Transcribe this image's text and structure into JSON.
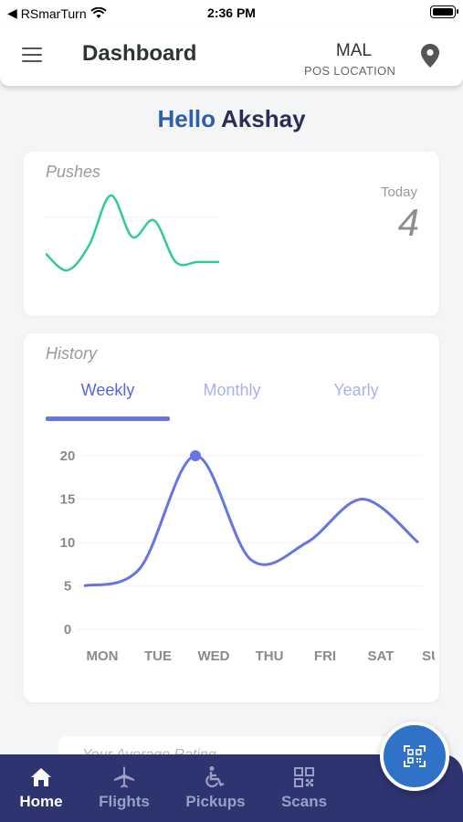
{
  "status_bar": {
    "back_app": "RSmarTurn",
    "time": "2:36 PM"
  },
  "header": {
    "title": "Dashboard",
    "location_code": "MAL",
    "location_label": "POS LOCATION"
  },
  "greeting": {
    "hello": "Hello",
    "name": "Akshay"
  },
  "pushes": {
    "label": "Pushes",
    "today_label": "Today",
    "today_value": "4",
    "sparkline_values": [
      4,
      2,
      5,
      11,
      6,
      8,
      3,
      3,
      3
    ],
    "line_color": "#2ecc8f"
  },
  "history": {
    "label": "History",
    "tabs": [
      {
        "label": "Weekly",
        "active": true
      },
      {
        "label": "Monthly",
        "active": false
      },
      {
        "label": "Yearly",
        "active": false
      }
    ]
  },
  "chart_data": {
    "type": "line",
    "categories": [
      "MON",
      "TUE",
      "WED",
      "THU",
      "FRI",
      "SAT",
      "SUN"
    ],
    "series": [
      {
        "values": [
          5,
          7,
          20,
          8,
          10,
          15,
          10
        ]
      }
    ],
    "ylim": [
      0,
      20
    ],
    "yticks": [
      0,
      5,
      10,
      15,
      20
    ],
    "highlight_index": 2,
    "grid": true,
    "line_color": "#6674e6"
  },
  "rating": {
    "label": "Your Average Rating"
  },
  "nav": {
    "items": [
      {
        "label": "Home",
        "icon": "home-icon",
        "active": true
      },
      {
        "label": "Flights",
        "icon": "plane-icon",
        "active": false
      },
      {
        "label": "Pickups",
        "icon": "wheelchair-icon",
        "active": false
      },
      {
        "label": "Scans",
        "icon": "qr-grid-icon",
        "active": false
      }
    ]
  },
  "colors": {
    "accent": "#2f72c8",
    "nav_bg": "#2e3470"
  }
}
